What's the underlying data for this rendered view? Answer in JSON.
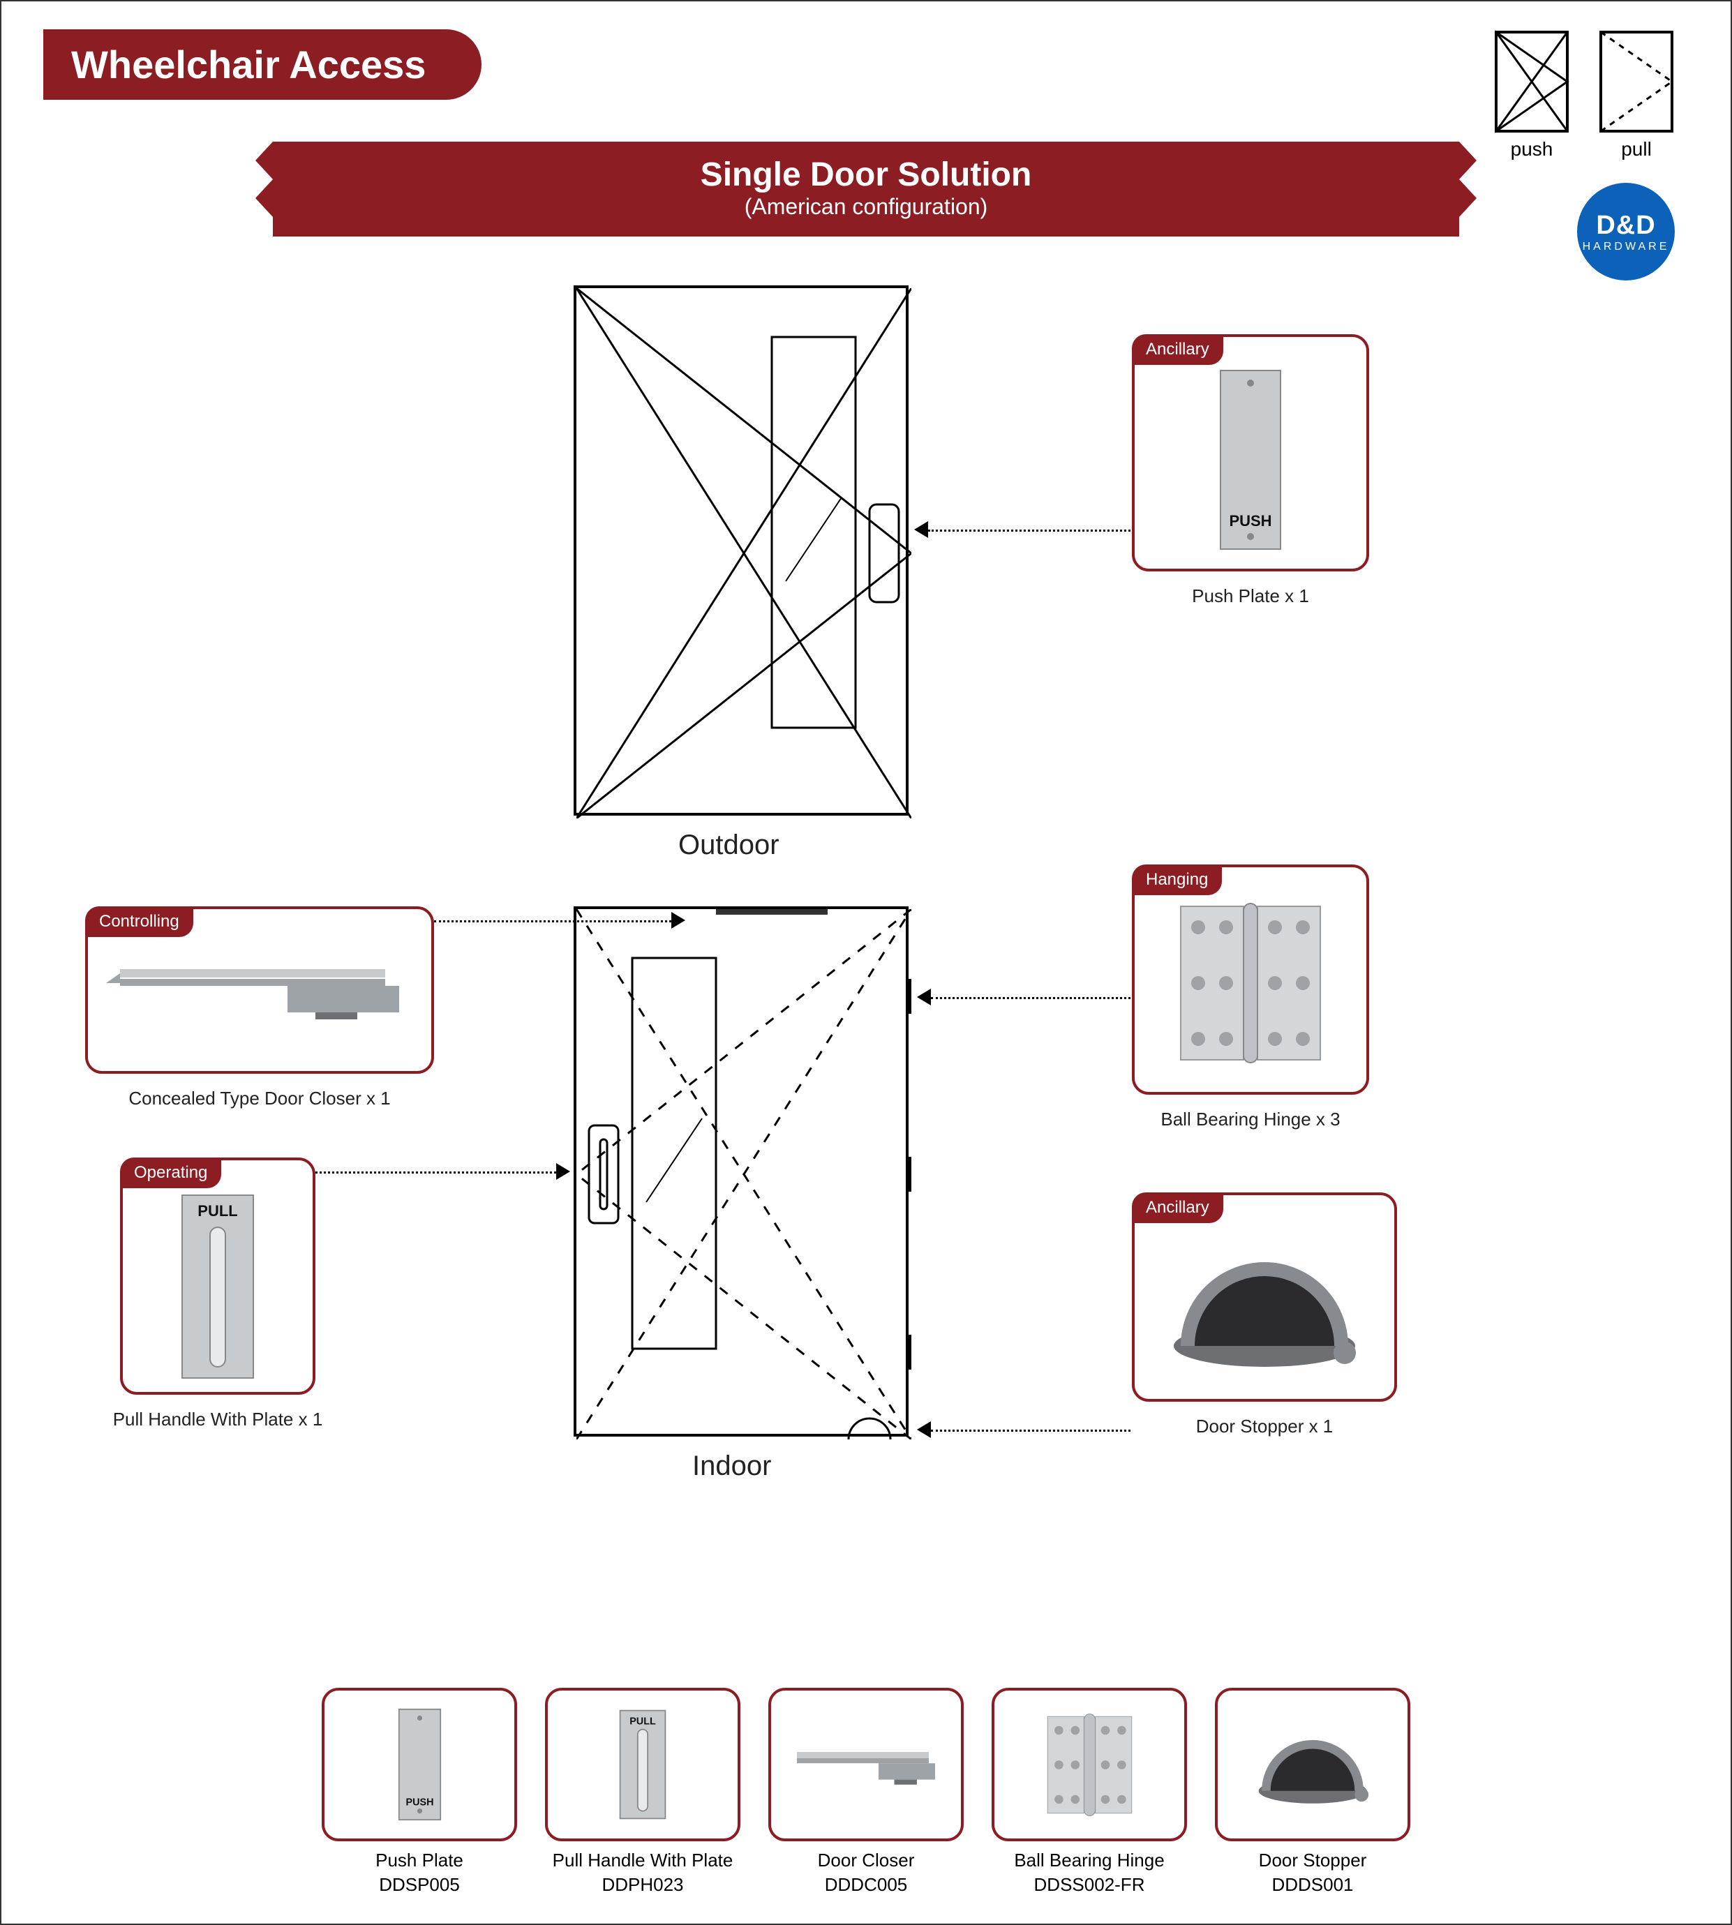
{
  "header": {
    "title": "Wheelchair Access"
  },
  "legend": {
    "push": "push",
    "pull": "pull"
  },
  "ribbon": {
    "title": "Single Door Solution",
    "subtitle": "(American configuration)"
  },
  "badge": {
    "top": "D&D",
    "bottom": "HARDWARE"
  },
  "colors": {
    "brand_red": "#8c1d23",
    "brand_blue": "#0b62b8",
    "text": "#222222",
    "border_black": "#000000",
    "steel": "#c8cbce",
    "steel_dark": "#9ea3a7",
    "stopper_grey": "#6e6f73",
    "stopper_dark": "#2b2b2d"
  },
  "doors": {
    "outdoor": {
      "label": "Outdoor"
    },
    "indoor": {
      "label": "Indoor"
    }
  },
  "callouts": {
    "push_plate": {
      "tag": "Ancillary",
      "caption": "Push Plate x 1",
      "plate_text": "PUSH"
    },
    "controlling": {
      "tag": "Controlling",
      "caption": "Concealed Type Door Closer x 1"
    },
    "operating": {
      "tag": "Operating",
      "caption": "Pull Handle With Plate x 1",
      "plate_text": "PULL"
    },
    "hanging": {
      "tag": "Hanging",
      "caption": "Ball Bearing Hinge x 3"
    },
    "ancillary2": {
      "tag": "Ancillary",
      "caption": "Door Stopper x 1"
    }
  },
  "products": [
    {
      "name": "Push Plate",
      "code": "DDSP005",
      "icon": "push-plate"
    },
    {
      "name": "Pull Handle With Plate",
      "code": "DDPH023",
      "icon": "pull-plate"
    },
    {
      "name": "Door Closer",
      "code": "DDDC005",
      "icon": "closer"
    },
    {
      "name": "Ball Bearing Hinge",
      "code": "DDSS002-FR",
      "icon": "hinge"
    },
    {
      "name": "Door Stopper",
      "code": "DDDS001",
      "icon": "stopper"
    }
  ]
}
